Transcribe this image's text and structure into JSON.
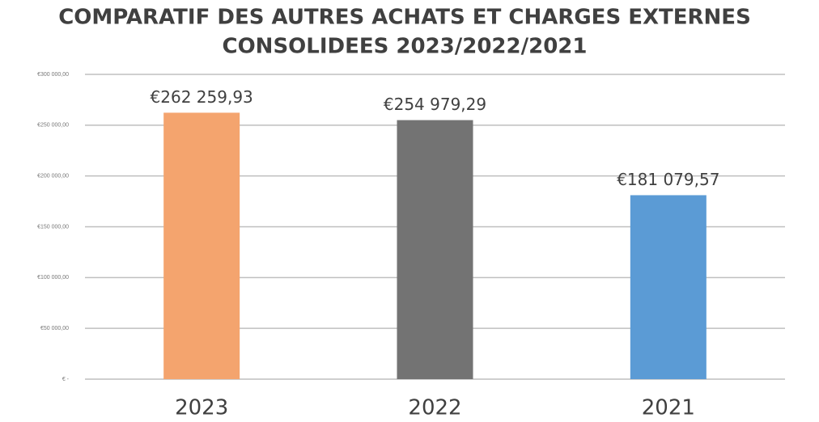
{
  "chart_data": {
    "type": "bar",
    "title": [
      "COMPARATIF DES AUTRES ACHATS ET CHARGES EXTERNES",
      "CONSOLIDEES 2023/2022/2021"
    ],
    "categories": [
      "2023",
      "2022",
      "2021"
    ],
    "values": [
      262259.93,
      254979.29,
      181079.57
    ],
    "value_labels": [
      "€262 259,93",
      "€254 979,29",
      "€181 079,57"
    ],
    "colors": [
      "#f4a46e",
      "#737373",
      "#5b9bd5"
    ],
    "ylim": [
      0,
      300000
    ],
    "yticks": [
      {
        "value": 0,
        "label": "€ -"
      },
      {
        "value": 50000,
        "label": "€50 000,00"
      },
      {
        "value": 100000,
        "label": "€100 000,00"
      },
      {
        "value": 150000,
        "label": "€150 000,00"
      },
      {
        "value": 200000,
        "label": "€200 000,00"
      },
      {
        "value": 250000,
        "label": "€250 000,00"
      },
      {
        "value": 300000,
        "label": "€300 000,00"
      }
    ],
    "grid": true
  }
}
